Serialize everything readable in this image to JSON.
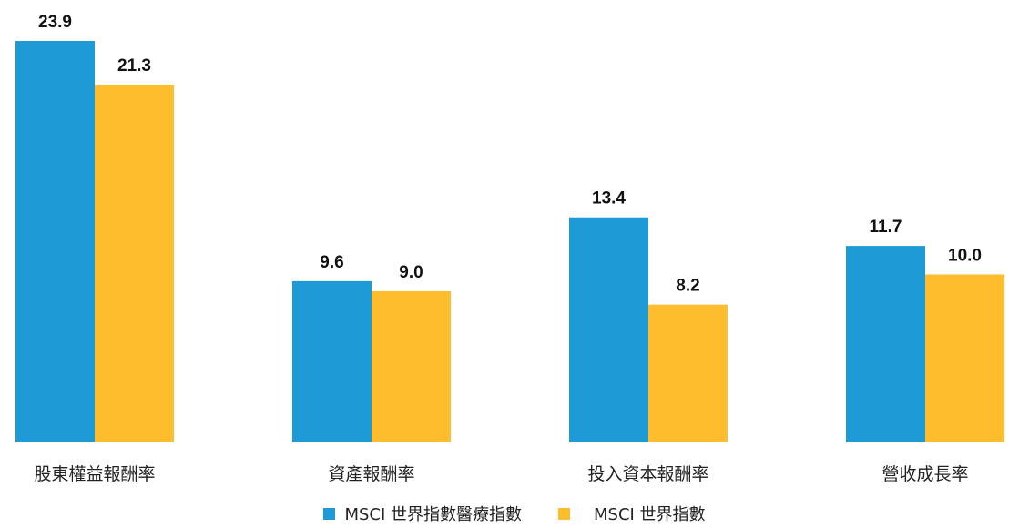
{
  "chart_data": {
    "type": "bar",
    "categories": [
      "股東權益報酬率",
      "資產報酬率",
      "投入資本報酬率",
      "營收成長率"
    ],
    "series": [
      {
        "name": "MSCI 世界指數醫療指數",
        "color": "#1E9AD6",
        "values": [
          23.9,
          9.6,
          13.4,
          11.7
        ],
        "labels": [
          "23.9",
          "9.6",
          "13.4",
          "11.7"
        ]
      },
      {
        "name": "MSCI 世界指數",
        "color": "#FDBD2C",
        "values": [
          21.3,
          9.0,
          8.2,
          10.0
        ],
        "labels": [
          "21.3",
          "9.0",
          "8.2",
          "10.0"
        ]
      }
    ],
    "ylim": [
      0,
      23.9
    ],
    "grid": false,
    "legend_position": "bottom-center"
  }
}
